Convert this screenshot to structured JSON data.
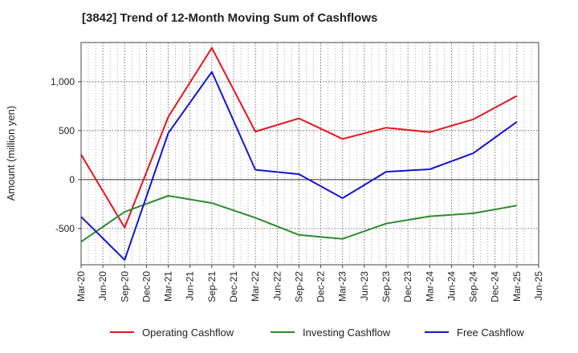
{
  "chart_data": {
    "type": "line",
    "title": "[3842]  Trend of 12-Month Moving Sum of Cashflows",
    "xlabel": "",
    "ylabel": "Amount (million yen)",
    "categories": [
      "Mar-20",
      "Jun-20",
      "Sep-20",
      "Dec-20",
      "Mar-21",
      "Jun-21",
      "Sep-21",
      "Dec-21",
      "Mar-22",
      "Jun-22",
      "Sep-22",
      "Dec-22",
      "Mar-23",
      "Jun-23",
      "Sep-23",
      "Dec-23",
      "Mar-24",
      "Jun-24",
      "Sep-24",
      "Dec-24",
      "Mar-25",
      "Jun-25"
    ],
    "yticks": [
      -500,
      0,
      500,
      1000
    ],
    "ytick_labels": [
      "-500",
      "0",
      "500",
      "1,000"
    ],
    "ylim": [
      -870,
      1400
    ],
    "grid": true,
    "legend_position": "bottom",
    "series": [
      {
        "name": "Operating Cashflow",
        "color": "#e8141c",
        "points": [
          [
            "Mar-20",
            255
          ],
          [
            "Sep-20",
            -490
          ],
          [
            "Mar-21",
            640
          ],
          [
            "Sep-21",
            1345
          ],
          [
            "Mar-22",
            490
          ],
          [
            "Sep-22",
            625
          ],
          [
            "Mar-23",
            415
          ],
          [
            "Sep-23",
            530
          ],
          [
            "Mar-24",
            485
          ],
          [
            "Sep-24",
            615
          ],
          [
            "Mar-25",
            855
          ]
        ]
      },
      {
        "name": "Investing Cashflow",
        "color": "#2e8b2e",
        "points": [
          [
            "Mar-20",
            -635
          ],
          [
            "Sep-20",
            -330
          ],
          [
            "Mar-21",
            -165
          ],
          [
            "Sep-21",
            -240
          ],
          [
            "Mar-22",
            -390
          ],
          [
            "Sep-22",
            -565
          ],
          [
            "Mar-23",
            -605
          ],
          [
            "Sep-23",
            -450
          ],
          [
            "Mar-24",
            -375
          ],
          [
            "Sep-24",
            -345
          ],
          [
            "Mar-25",
            -265
          ]
        ]
      },
      {
        "name": "Free Cashflow",
        "color": "#1414d2",
        "points": [
          [
            "Mar-20",
            -380
          ],
          [
            "Sep-20",
            -820
          ],
          [
            "Mar-21",
            475
          ],
          [
            "Sep-21",
            1100
          ],
          [
            "Mar-22",
            100
          ],
          [
            "Sep-22",
            55
          ],
          [
            "Mar-23",
            -190
          ],
          [
            "Sep-23",
            80
          ],
          [
            "Mar-24",
            105
          ],
          [
            "Sep-24",
            270
          ],
          [
            "Mar-25",
            590
          ]
        ]
      }
    ]
  }
}
